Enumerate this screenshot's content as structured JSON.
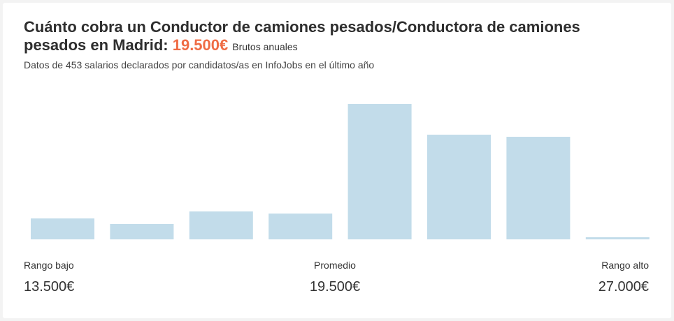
{
  "header": {
    "title_text": "Cuánto cobra un Conductor de camiones pesados/Conductora de camiones pesados en Madrid:",
    "amount": "19.500€",
    "gross_label": "Brutos anuales",
    "subtitle": "Datos de 453 salarios declarados por candidatos/as en InfoJobs en el último año"
  },
  "colors": {
    "bar": "#c2dcea",
    "accent": "#ef6c45"
  },
  "chart_data": {
    "type": "bar",
    "title": "",
    "xlabel": "",
    "ylabel": "",
    "note": "Relative frequency of declared salaries per salary bucket (no axis values printed; heights are relative)",
    "values": [
      30,
      22,
      40,
      37,
      194,
      150,
      147,
      3
    ]
  },
  "stats": {
    "low": {
      "label": "Rango bajo",
      "value": "13.500€"
    },
    "avg": {
      "label": "Promedio",
      "value": "19.500€"
    },
    "high": {
      "label": "Rango alto",
      "value": "27.000€"
    }
  }
}
